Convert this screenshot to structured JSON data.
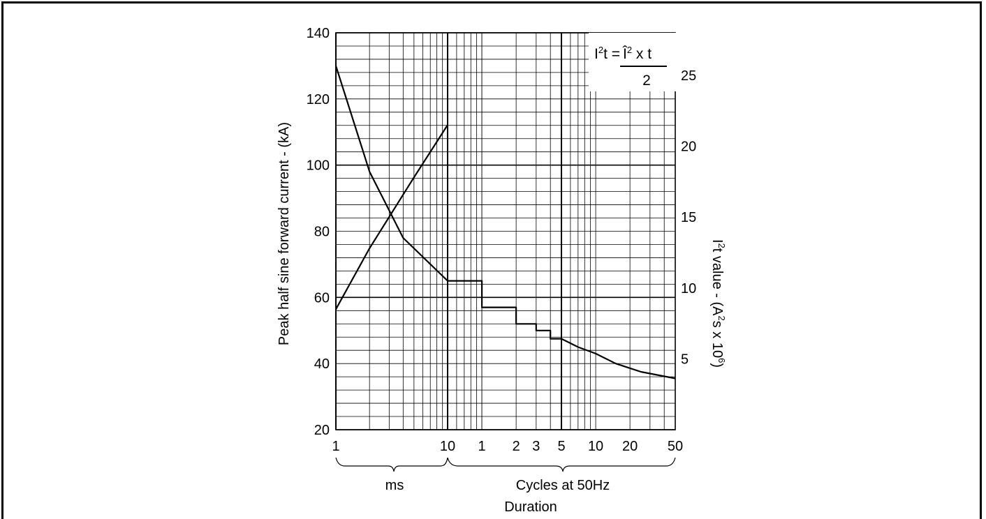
{
  "chart_data": {
    "type": "line",
    "title": "",
    "left_axis": {
      "label": "Peak half sine forward current - (kA)",
      "range": [
        20,
        140
      ],
      "ticks": [
        "20",
        "40",
        "60",
        "80",
        "100",
        "120",
        "140"
      ]
    },
    "right_axis": {
      "label_prefix": "I",
      "label_sup1": "2",
      "label_mid": "t value - (A",
      "label_sup2": "2",
      "label_mid2": "s x 10",
      "label_sup3": "6",
      "label_suffix": ")",
      "range": [
        0,
        28
      ],
      "ticks": [
        "5",
        "10",
        "15",
        "20",
        "25"
      ]
    },
    "x_axis": {
      "scale": "log",
      "segments": [
        {
          "unit": "ms",
          "range": [
            1,
            10
          ],
          "ticks": [
            "1",
            "10"
          ],
          "label": "ms"
        },
        {
          "unit": "cycles",
          "range": [
            0.5,
            50
          ],
          "ticks": [
            "1",
            "2",
            "3",
            "5",
            "10",
            "20",
            "50"
          ],
          "label": "Cycles at 50Hz"
        }
      ],
      "label": "Duration"
    },
    "formula": {
      "lhs_a": "I",
      "lhs_sup": "2",
      "lhs_b": "t = ",
      "num_a": "Î",
      "num_sup": "2",
      "num_b": " x t",
      "den": "2"
    },
    "series": [
      {
        "axis": "left",
        "segment": "ms",
        "points": [
          [
            1,
            130
          ],
          [
            2,
            98
          ],
          [
            4,
            78
          ],
          [
            10,
            65
          ]
        ]
      },
      {
        "axis": "left",
        "segment": "cycles",
        "steps": true,
        "points": [
          [
            0.5,
            65
          ],
          [
            1,
            65
          ],
          [
            1,
            57
          ],
          [
            2,
            57
          ],
          [
            2,
            52
          ],
          [
            3,
            52
          ],
          [
            3,
            50
          ],
          [
            4,
            50
          ],
          [
            4,
            47.5
          ],
          [
            5,
            47.5
          ],
          [
            7,
            45
          ],
          [
            10,
            43
          ],
          [
            15,
            40
          ],
          [
            25,
            37.5
          ],
          [
            50,
            35.5
          ]
        ]
      },
      {
        "axis": "right",
        "segment": "ms",
        "points": [
          [
            1,
            8.5
          ],
          [
            2,
            12.8
          ],
          [
            5,
            17.8
          ],
          [
            10,
            21.5
          ]
        ]
      }
    ]
  }
}
